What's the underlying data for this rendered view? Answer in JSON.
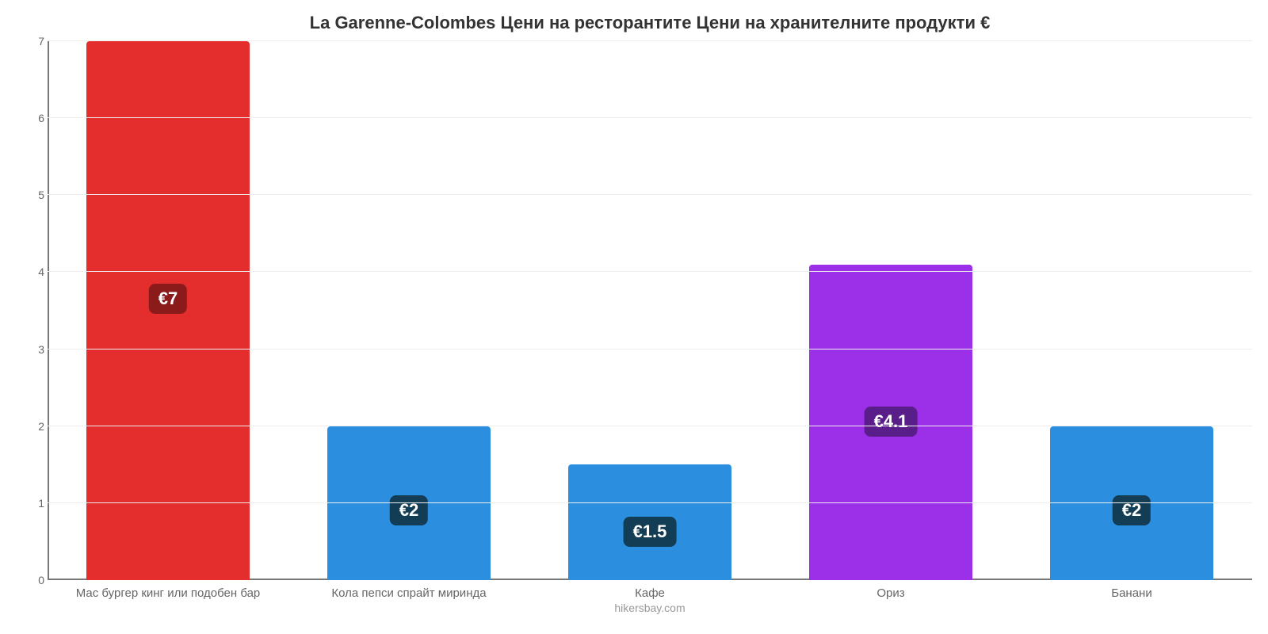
{
  "chart": {
    "type": "bar",
    "title": "La Garenne-Colombes Цени на ресторантите Цени на хранителните продукти €",
    "title_fontsize": 22,
    "title_color": "#333333",
    "credit": "hikersbay.com",
    "credit_color": "#999999",
    "background_color": "#ffffff",
    "grid_color": "#eeeeee",
    "axis_color": "#777777",
    "ymin": 0,
    "ymax": 7,
    "ytick_step": 1,
    "yticks": [
      "0",
      "1",
      "2",
      "3",
      "4",
      "5",
      "6",
      "7"
    ],
    "label_fontsize": 15,
    "value_badge_bg_default": "#133c55",
    "value_badge_bg_red": "#8b1a1a",
    "value_badge_bg_purple": "#5a1e8a",
    "value_badge_fontsize": 22,
    "value_badge_text_color": "#ffffff",
    "bar_width_pct": 68,
    "bars": [
      {
        "label": "Мас бургер кинг или подобен бар",
        "value": 7.0,
        "display": "€7",
        "color": "#e42d2d",
        "badge_bg": "#8b1a1a"
      },
      {
        "label": "Кола пепси спрайт миринда",
        "value": 2.0,
        "display": "€2",
        "color": "#2b8ede",
        "badge_bg": "#133c55"
      },
      {
        "label": "Кафе",
        "value": 1.5,
        "display": "€1.5",
        "color": "#2b8ede",
        "badge_bg": "#133c55"
      },
      {
        "label": "Ориз",
        "value": 4.1,
        "display": "€4.1",
        "color": "#9b30e8",
        "badge_bg": "#5a1e8a"
      },
      {
        "label": "Банани",
        "value": 2.0,
        "display": "€2",
        "color": "#2b8ede",
        "badge_bg": "#133c55"
      }
    ]
  }
}
